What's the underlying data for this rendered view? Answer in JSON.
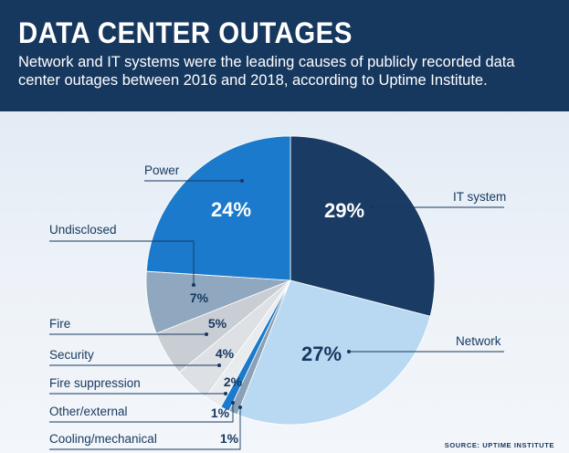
{
  "header": {
    "title": "DATA CENTER OUTAGES",
    "subtitle": "Network and IT systems were the leading causes of publicly recorded data center outages between 2016 and 2018, according to Uptime Institute."
  },
  "source": "SOURCE: UPTIME INSTITUTE",
  "colors": {
    "header_bg": "#16385f",
    "background": "#e4ecf5",
    "it_system": "#1a3b63",
    "network": "#b9d9f3",
    "power": "#1b7acb",
    "undisclosed": "#8fa8bf",
    "fire": "#c9ced4",
    "security": "#dde1e5",
    "fire_suppression": "#e9ecee",
    "other_external": "#1b7acb",
    "cooling_mechanical": "#8aa0b6",
    "label_text": "#16385f"
  },
  "chart_data": {
    "type": "pie",
    "title": "DATA CENTER OUTAGES",
    "unit": "%",
    "slices": [
      {
        "key": "it_system",
        "label": "IT system",
        "value": 29,
        "display": "29%"
      },
      {
        "key": "network",
        "label": "Network",
        "value": 27,
        "display": "27%"
      },
      {
        "key": "cooling_mechanical",
        "label": "Cooling/mechanical",
        "value": 1,
        "display": "1%"
      },
      {
        "key": "other_external",
        "label": "Other/external",
        "value": 1,
        "display": "1%"
      },
      {
        "key": "fire_suppression",
        "label": "Fire suppression",
        "value": 2,
        "display": "2%"
      },
      {
        "key": "security",
        "label": "Security",
        "value": 4,
        "display": "4%"
      },
      {
        "key": "fire",
        "label": "Fire",
        "value": 5,
        "display": "5%"
      },
      {
        "key": "undisclosed",
        "label": "Undisclosed",
        "value": 7,
        "display": "7%"
      },
      {
        "key": "power",
        "label": "Power",
        "value": 24,
        "display": "24%"
      }
    ]
  }
}
